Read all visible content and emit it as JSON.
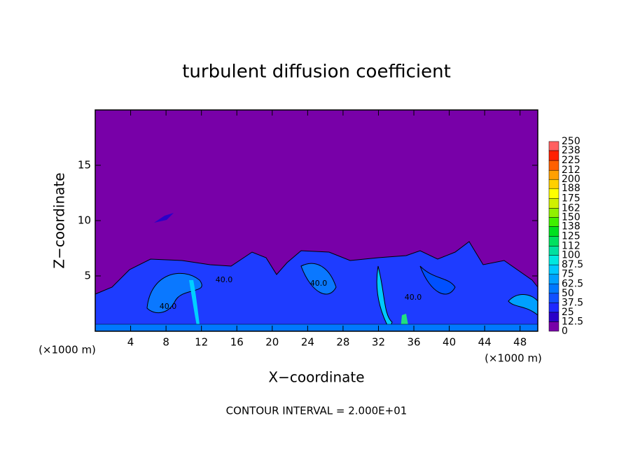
{
  "chart_data": {
    "type": "contour",
    "title": "turbulent diffusion coefficient",
    "xlabel": "X−coordinate",
    "ylabel": "Z−coordinate",
    "x_unit_left": "(×1000 m)",
    "x_unit_right": "(×1000 m)",
    "footer": "CONTOUR INTERVAL = 2.000E+01",
    "xlim": [
      0,
      50
    ],
    "ylim": [
      0,
      20
    ],
    "xticks": [
      4,
      8,
      12,
      16,
      20,
      24,
      28,
      32,
      36,
      40,
      44,
      48
    ],
    "yticks": [
      5,
      10,
      15
    ],
    "contour_labels": [
      "40.0",
      "40.0",
      "40.0",
      "40.0"
    ],
    "colorbar": {
      "levels": [
        0,
        12.5,
        25,
        37.5,
        50,
        62.5,
        75,
        87.5,
        100,
        112,
        125,
        138,
        150,
        162,
        175,
        188,
        200,
        212,
        225,
        238,
        250
      ],
      "colors": [
        "#7800a8",
        "#2a00c8",
        "#1e28ff",
        "#1050ff",
        "#0078ff",
        "#00a0ff",
        "#00c8ff",
        "#00e8e0",
        "#00e0a0",
        "#00e060",
        "#00e020",
        "#40f000",
        "#90f000",
        "#d0f000",
        "#ffff00",
        "#ffd000",
        "#ffa000",
        "#ff6000",
        "#ff2000",
        "#ff6060"
      ]
    }
  }
}
